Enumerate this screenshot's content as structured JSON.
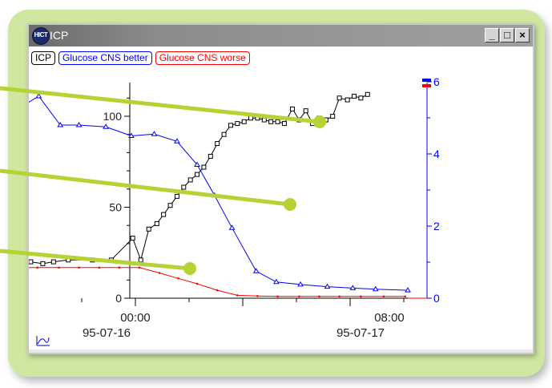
{
  "window": {
    "title": "ICP",
    "logo_text": "HICT",
    "minimize_glyph": "_",
    "maximize_glyph": "□",
    "close_glyph": "×"
  },
  "legend": [
    {
      "label": "ICP",
      "color": "#000000"
    },
    {
      "label": "Glucose CNS better",
      "color": "#0000ff"
    },
    {
      "label": "Glucose CNS worse",
      "color": "#ff0000"
    }
  ],
  "colors": {
    "frame": "#cfe7a1",
    "callout": "#b5d334"
  },
  "chart_data": {
    "type": "line",
    "x_unit": "hours since 95-07-16 00:00",
    "x_ticks": [
      {
        "label": "00:00",
        "date": "95-07-16"
      },
      {
        "label": "08:00",
        "date": "95-07-17"
      }
    ],
    "y_left": {
      "ticks": [
        0,
        50,
        100
      ],
      "ylim": [
        0,
        120
      ]
    },
    "y_right": {
      "ticks": [
        0,
        2,
        4,
        6
      ],
      "ylim": [
        0,
        6
      ]
    },
    "series": [
      {
        "name": "ICP",
        "axis": "left",
        "color": "#000000",
        "marker": "square",
        "points": [
          [
            -10.9,
            22
          ],
          [
            -10.2,
            21
          ],
          [
            -9.4,
            21
          ],
          [
            -8.7,
            20
          ],
          [
            -7.8,
            20
          ],
          [
            -6.9,
            19
          ],
          [
            -6.1,
            20
          ],
          [
            -5.0,
            21
          ],
          [
            -3.2,
            21
          ],
          [
            -1.8,
            21
          ],
          [
            -0.2,
            33
          ],
          [
            0.4,
            21
          ],
          [
            1.0,
            38
          ],
          [
            1.6,
            41
          ],
          [
            2.1,
            46
          ],
          [
            2.6,
            51
          ],
          [
            3.1,
            56
          ],
          [
            3.6,
            61
          ],
          [
            4.1,
            65
          ],
          [
            4.6,
            68
          ],
          [
            5.1,
            72
          ],
          [
            5.6,
            78
          ],
          [
            6.1,
            85
          ],
          [
            6.6,
            90
          ],
          [
            7.1,
            95
          ],
          [
            7.6,
            96
          ],
          [
            8.1,
            97
          ],
          [
            8.6,
            99
          ],
          [
            9.1,
            99
          ],
          [
            9.6,
            98
          ],
          [
            10.1,
            97
          ],
          [
            10.6,
            97
          ],
          [
            11.1,
            96
          ],
          [
            11.7,
            104
          ],
          [
            12.2,
            98
          ],
          [
            12.7,
            103
          ],
          [
            13.2,
            96
          ],
          [
            13.7,
            99
          ],
          [
            14.2,
            98
          ],
          [
            14.7,
            100
          ],
          [
            15.2,
            110
          ],
          [
            15.8,
            109
          ],
          [
            16.3,
            111
          ],
          [
            16.8,
            110
          ],
          [
            17.3,
            112
          ]
        ]
      },
      {
        "name": "Glucose CNS better",
        "axis": "right",
        "color": "#0000ff",
        "marker": "triangle",
        "points": [
          [
            -11.2,
            4.55
          ],
          [
            -10.3,
            5.1
          ],
          [
            -9.2,
            5.15
          ],
          [
            -7.2,
            5.6
          ],
          [
            -5.6,
            4.8
          ],
          [
            -4.2,
            4.8
          ],
          [
            -2.2,
            4.75
          ],
          [
            -0.3,
            4.5
          ],
          [
            1.4,
            4.55
          ],
          [
            3.1,
            4.35
          ],
          [
            4.6,
            3.7
          ],
          [
            5.9,
            2.85
          ],
          [
            7.2,
            1.95
          ],
          [
            9.0,
            0.75
          ],
          [
            10.5,
            0.45
          ],
          [
            12.3,
            0.38
          ],
          [
            14.3,
            0.32
          ],
          [
            16.2,
            0.28
          ],
          [
            17.9,
            0.25
          ],
          [
            20.3,
            0.22
          ]
        ]
      },
      {
        "name": "Glucose CNS worse",
        "axis": "right",
        "color": "#ff0000",
        "marker": "dot",
        "points": [
          [
            -10.8,
            0.7
          ],
          [
            -9.9,
            0.85
          ],
          [
            -8.6,
            0.85
          ],
          [
            -7.3,
            0.85
          ],
          [
            -5.7,
            0.85
          ],
          [
            -4.2,
            0.85
          ],
          [
            -2.7,
            0.85
          ],
          [
            -1.2,
            0.85
          ],
          [
            0.3,
            0.85
          ],
          [
            1.8,
            0.7
          ],
          [
            3.2,
            0.55
          ],
          [
            4.6,
            0.4
          ],
          [
            6.1,
            0.22
          ],
          [
            7.6,
            0.08
          ],
          [
            9.1,
            0.06
          ],
          [
            10.6,
            0.05
          ],
          [
            12.2,
            0.05
          ],
          [
            13.7,
            0.05
          ],
          [
            15.2,
            0.05
          ],
          [
            16.8,
            0.05
          ],
          [
            18.5,
            0.05
          ],
          [
            20.1,
            0.05
          ]
        ]
      }
    ],
    "right_axis_markers": [
      "#0000ff",
      "#ff0000"
    ]
  }
}
